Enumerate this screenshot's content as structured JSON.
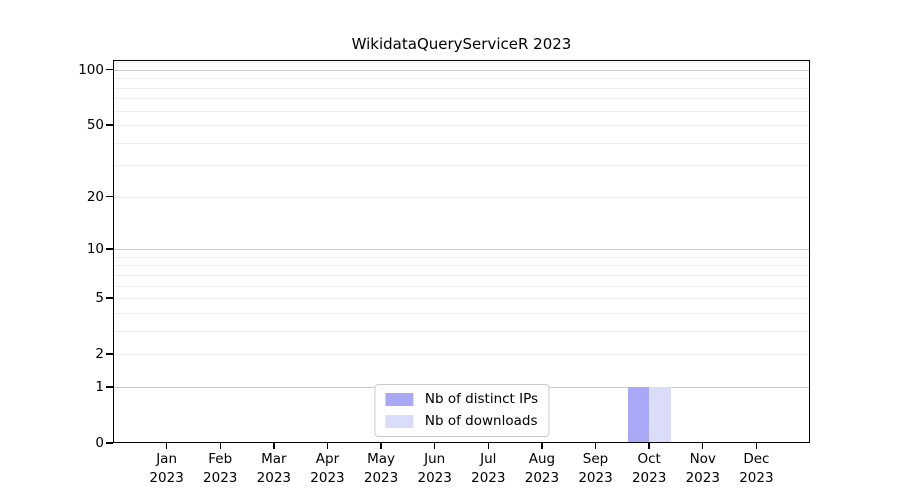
{
  "chart_data": {
    "type": "bar",
    "title": "WikidataQueryServiceR 2023",
    "categories": [
      "Jan",
      "Feb",
      "Mar",
      "Apr",
      "May",
      "Jun",
      "Jul",
      "Aug",
      "Sep",
      "Oct",
      "Nov",
      "Dec"
    ],
    "year": "2023",
    "series": [
      {
        "name": "Nb of distinct IPs",
        "color": "#a8a8f7",
        "values": [
          0,
          0,
          0,
          0,
          0,
          0,
          0,
          0,
          0,
          1,
          0,
          0
        ]
      },
      {
        "name": "Nb of downloads",
        "color": "#dbdbfa",
        "values": [
          0,
          0,
          0,
          0,
          0,
          0,
          0,
          0,
          0,
          1,
          0,
          0
        ]
      }
    ],
    "xlabel": "",
    "ylabel": "",
    "yscale": "log1p",
    "yticks": [
      0,
      1,
      2,
      5,
      10,
      20,
      50,
      100
    ],
    "ylim": [
      0,
      113
    ],
    "grid": {
      "major": [
        1,
        10,
        100
      ],
      "minor": [
        2,
        3,
        4,
        5,
        6,
        7,
        8,
        9,
        20,
        30,
        40,
        50,
        60,
        70,
        80,
        90,
        110
      ]
    },
    "legend": {
      "position": "lower center",
      "entries": [
        "Nb of distinct IPs",
        "Nb of downloads"
      ]
    }
  }
}
